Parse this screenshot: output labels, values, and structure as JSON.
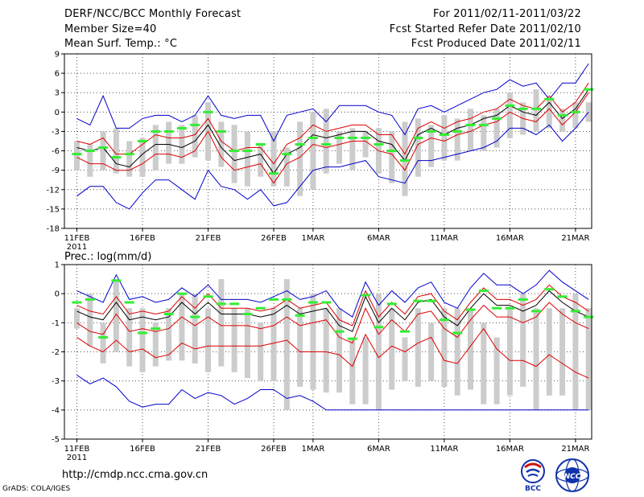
{
  "header": {
    "title": "DERF/NCC/BCC Monthly Forecast",
    "member_size": "Member Size=40",
    "variable_label": "Mean Surf. Temp.: °C",
    "forecast_period": "For 2011/02/11-2011/03/22",
    "fcst_started": "Fcst Started Refer Date 2011/02/10",
    "fcst_produced": "Fcst Produced Date 2011/02/11"
  },
  "footer": {
    "url": "http://cmdp.ncc.cma.gov.cn",
    "grads_credit": "GrADS: COLA/IGES",
    "logo_bcc": "BCC",
    "logo_ncc": "NCC"
  },
  "colors": {
    "box": "#cccccc",
    "mean": "#000000",
    "inner": "#dd0000",
    "outer": "#0000cc",
    "obs": "#33ee33",
    "grid": "#555555"
  },
  "chart_data": [
    {
      "id": "temp",
      "type": "line",
      "title": "Mean Surf. Temp.: °C",
      "ylim": [
        -18,
        9
      ],
      "yticks": [
        9,
        6,
        3,
        0,
        -3,
        -6,
        -9,
        -12,
        -15,
        -18
      ],
      "xlim": [
        0,
        40
      ],
      "xtick_positions": [
        0,
        5,
        10,
        15,
        18,
        23,
        28,
        33,
        38
      ],
      "xtick_labels": [
        "11FEB",
        "16FEB",
        "21FEB",
        "26FEB",
        "1MAR",
        "6MAR",
        "11MAR",
        "16MAR",
        "21MAR"
      ],
      "xtick_sublabel": "2011",
      "days": [
        0,
        1,
        2,
        3,
        4,
        5,
        6,
        7,
        8,
        9,
        10,
        11,
        12,
        13,
        14,
        15,
        16,
        17,
        18,
        19,
        20,
        21,
        22,
        23,
        24,
        25,
        26,
        27,
        28,
        29,
        30,
        31,
        32,
        33,
        34,
        35,
        36,
        37,
        38,
        39
      ],
      "box_top": [
        -4.5,
        -5,
        -3,
        -2.5,
        -4.5,
        -4,
        -2,
        -1.5,
        -2,
        -0.5,
        1.5,
        -1.5,
        -2,
        -3,
        -5,
        -3,
        -5.5,
        -1.5,
        0,
        0.5,
        -3,
        -2.5,
        -3,
        -2.5,
        -3,
        -1.5,
        -1,
        -2,
        -0.5,
        -1,
        0.5,
        -0.5,
        0.5,
        3,
        1.5,
        3.5,
        2,
        0.5,
        1.5,
        1.5
      ],
      "box_bottom": [
        -9,
        -10,
        -9,
        -9.5,
        -10,
        -10,
        -9,
        -8,
        -8,
        -7,
        -7.5,
        -8.5,
        -11,
        -11.5,
        -10,
        -11.5,
        -11.5,
        -13,
        -12,
        -9.5,
        -8,
        -9,
        -7,
        -9.5,
        -11,
        -13,
        -10,
        -8.5,
        -7.5,
        -7.5,
        -6,
        -6,
        -5.5,
        -4,
        -3.5,
        -3,
        -2.5,
        -3,
        -2.5,
        -1.5
      ],
      "obs": [
        -6.5,
        -6,
        -5.5,
        -7,
        -6.5,
        -4.5,
        -3,
        -3,
        -2.5,
        -2,
        0,
        -3,
        -6,
        -6,
        -5,
        -9.5,
        -6.5,
        -5,
        -4,
        -5,
        -4,
        -4,
        -4,
        -5,
        -6,
        -7.5,
        -4,
        -3,
        -3.5,
        -3,
        -2,
        -2,
        -1,
        1,
        0.5,
        0.5,
        2,
        -0.5,
        0,
        3.5
      ],
      "series": [
        {
          "name": "upper-outer",
          "role": "outer",
          "values": [
            -1,
            -2,
            2.5,
            -2.5,
            -2.5,
            -1,
            -0.5,
            -0.5,
            -1.5,
            -0.5,
            2.5,
            -0.5,
            -1,
            -0.5,
            -0.5,
            -4.5,
            -0.5,
            0,
            0.5,
            -1.5,
            1,
            1,
            1,
            0,
            -0.5,
            -3.5,
            0.5,
            1,
            0,
            1,
            2,
            3,
            3.5,
            5,
            4,
            4.5,
            2,
            4.5,
            4.5,
            7.5
          ]
        },
        {
          "name": "upper-inner",
          "role": "inner",
          "values": [
            -4.5,
            -5,
            -4,
            -6.5,
            -6.5,
            -5,
            -3.5,
            -4,
            -4,
            -3.5,
            -1,
            -4.5,
            -6,
            -5.5,
            -5.5,
            -8,
            -5,
            -4,
            -2,
            -3,
            -2.5,
            -2,
            -2,
            -3.5,
            -3.5,
            -6.5,
            -2.5,
            -1.5,
            -2.5,
            -1.5,
            -1,
            0,
            0.5,
            2,
            1,
            0.5,
            2.5,
            0,
            1.5,
            4.5
          ]
        },
        {
          "name": "mean",
          "role": "mean",
          "values": [
            -5.5,
            -6,
            -5.5,
            -8,
            -8.5,
            -6.5,
            -5,
            -5,
            -5.5,
            -4.5,
            -2,
            -5.5,
            -7.5,
            -7,
            -6.5,
            -9.5,
            -6.5,
            -5.5,
            -3.5,
            -4,
            -3.5,
            -3,
            -3,
            -4.5,
            -5,
            -7.5,
            -3.5,
            -2.5,
            -3.5,
            -2.5,
            -2,
            -1,
            -0.5,
            1,
            0,
            -0.5,
            1.5,
            -1,
            0.5,
            3.5
          ]
        },
        {
          "name": "lower-inner",
          "role": "inner",
          "values": [
            -7,
            -8,
            -8,
            -9,
            -9,
            -8,
            -6.5,
            -6.5,
            -7,
            -6,
            -3,
            -7,
            -9,
            -8.5,
            -8,
            -11,
            -8,
            -7,
            -5,
            -5.5,
            -5,
            -4.5,
            -4.5,
            -6,
            -6.5,
            -9,
            -5,
            -4,
            -4.5,
            -3.5,
            -3,
            -2,
            -1.5,
            0,
            -1,
            -1.5,
            0.5,
            -2,
            0,
            3
          ]
        },
        {
          "name": "lower-outer",
          "role": "outer",
          "values": [
            -13,
            -11.5,
            -11.5,
            -14,
            -15,
            -12.5,
            -10.5,
            -10.5,
            -12,
            -13.5,
            -9,
            -11.5,
            -12,
            -13.5,
            -12,
            -14.5,
            -14,
            -11.5,
            -9,
            -8.5,
            -8.5,
            -8,
            -7.5,
            -10,
            -10.5,
            -11,
            -7.5,
            -7.5,
            -7,
            -6.5,
            -6,
            -5.5,
            -4.5,
            -2.5,
            -2.5,
            -3.5,
            -2,
            -4.5,
            -2.5,
            0
          ]
        }
      ]
    },
    {
      "id": "prec",
      "type": "line",
      "title": "Prec.: log(mm/d)",
      "ylim": [
        -5,
        1
      ],
      "yticks": [
        1,
        0,
        -1,
        -2,
        -3,
        -4,
        -5
      ],
      "xlim": [
        0,
        40
      ],
      "xtick_positions": [
        0,
        5,
        10,
        15,
        18,
        23,
        28,
        33,
        38
      ],
      "xtick_labels": [
        "11FEB",
        "16FEB",
        "21FEB",
        "26FEB",
        "1MAR",
        "6MAR",
        "11MAR",
        "16MAR",
        "21MAR"
      ],
      "xtick_sublabel": "2011",
      "days": [
        0,
        1,
        2,
        3,
        4,
        5,
        6,
        7,
        8,
        9,
        10,
        11,
        12,
        13,
        14,
        15,
        16,
        17,
        18,
        19,
        20,
        21,
        22,
        23,
        24,
        25,
        26,
        27,
        28,
        29,
        30,
        31,
        32,
        33,
        34,
        35,
        36,
        37,
        38,
        39
      ],
      "box_top": [
        -0.5,
        0,
        -1,
        0.5,
        -0.5,
        -0.5,
        -1,
        -0.5,
        0,
        0,
        -0.5,
        0.5,
        -0.5,
        -0.5,
        -1,
        -0.5,
        0.5,
        -0.5,
        0,
        -0.5,
        -0.5,
        -1.5,
        -1.5,
        0,
        -0.5,
        -1.5,
        -0.5,
        -1,
        -0.5,
        -0.5,
        -0.5,
        -1,
        -1.5,
        -0.5,
        0,
        -0.5,
        -0.5,
        -0.5,
        0,
        -0.5
      ],
      "box_bottom": [
        -1.2,
        -1.8,
        -2.4,
        -2,
        -2.5,
        -2.7,
        -2.5,
        -2.3,
        -2.3,
        -2.4,
        -2.7,
        -2.5,
        -2.7,
        -2.9,
        -3,
        -3,
        -4,
        -3.2,
        -3.3,
        -3.4,
        -3.4,
        -3.8,
        -3.8,
        -4,
        -3.3,
        -3,
        -3.2,
        -3,
        -3.2,
        -3.5,
        -3.3,
        -3.8,
        -3.8,
        -3.5,
        -3.2,
        -4,
        -3.5,
        -3.5,
        -4,
        -4
      ],
      "obs": [
        -0.3,
        -0.2,
        -1.5,
        0.45,
        -0.3,
        -1.35,
        -1.2,
        -0.7,
        0,
        -0.8,
        -0.1,
        -0.35,
        -0.35,
        -0.7,
        -0.5,
        -0.2,
        -0.2,
        -0.75,
        -0.3,
        -0.3,
        -1.3,
        -1.55,
        -0.05,
        -1.15,
        -0.35,
        -1.3,
        -0.25,
        -0.25,
        -0.9,
        -1.35,
        -0.55,
        0.1,
        -0.5,
        -0.5,
        -0.2,
        -0.6,
        0.15,
        -0.1,
        -0.6,
        -0.8
      ],
      "series": [
        {
          "name": "upper-outer",
          "role": "outer",
          "values": [
            0.1,
            -0.1,
            -0.3,
            0.65,
            -0.2,
            -0.1,
            -0.3,
            -0.2,
            0.2,
            -0.1,
            0.3,
            -0.2,
            -0.2,
            -0.2,
            -0.3,
            -0.1,
            0.1,
            -0.2,
            -0.1,
            0.1,
            -0.5,
            -0.8,
            0.4,
            -0.4,
            0.1,
            -0.3,
            0.2,
            0.4,
            -0.3,
            -0.5,
            0.2,
            0.7,
            0.3,
            0.3,
            0,
            0.3,
            0.8,
            0.4,
            0.1,
            -0.2
          ]
        },
        {
          "name": "upper-inner",
          "role": "inner",
          "values": [
            -0.4,
            -0.6,
            -0.7,
            -0.1,
            -0.7,
            -0.6,
            -0.7,
            -0.6,
            -0.1,
            -0.5,
            0,
            -0.5,
            -0.5,
            -0.5,
            -0.6,
            -0.5,
            -0.2,
            -0.5,
            -0.4,
            -0.3,
            -0.9,
            -1.1,
            0.1,
            -0.8,
            -0.3,
            -0.7,
            -0.1,
            0,
            -0.6,
            -0.9,
            -0.3,
            0.2,
            -0.2,
            -0.2,
            -0.4,
            -0.2,
            0.3,
            -0.1,
            -0.3,
            -0.6
          ]
        },
        {
          "name": "mean",
          "role": "mean",
          "values": [
            -0.6,
            -0.8,
            -0.9,
            -0.3,
            -0.9,
            -0.8,
            -0.9,
            -0.8,
            -0.3,
            -0.7,
            -0.3,
            -0.7,
            -0.7,
            -0.7,
            -0.8,
            -0.7,
            -0.4,
            -0.7,
            -0.6,
            -0.5,
            -1.1,
            -1.3,
            -0.1,
            -1,
            -0.5,
            -0.9,
            -0.3,
            -0.2,
            -0.8,
            -1.1,
            -0.5,
            0,
            -0.4,
            -0.4,
            -0.6,
            -0.4,
            0.1,
            -0.3,
            -0.6,
            -0.8
          ]
        },
        {
          "name": "lower-inner",
          "role": "inner",
          "values": [
            -1,
            -1.3,
            -1.4,
            -0.7,
            -1.3,
            -1.2,
            -1.3,
            -1.2,
            -0.8,
            -1.1,
            -0.8,
            -1.1,
            -1.1,
            -1.1,
            -1.2,
            -1.1,
            -0.8,
            -1.1,
            -1,
            -0.9,
            -1.5,
            -1.7,
            -0.5,
            -1.4,
            -0.9,
            -1.3,
            -0.7,
            -0.6,
            -1.2,
            -1.5,
            -0.9,
            -0.4,
            -0.8,
            -0.8,
            -1,
            -0.8,
            -0.3,
            -0.7,
            -1,
            -1.2
          ]
        },
        {
          "name": "lower-red",
          "role": "inner",
          "values": [
            -1.5,
            -1.8,
            -2,
            -1.6,
            -2,
            -1.9,
            -2.2,
            -2.1,
            -1.7,
            -1.9,
            -1.8,
            -1.8,
            -1.8,
            -1.8,
            -1.8,
            -1.7,
            -1.6,
            -2,
            -2,
            -2,
            -2.1,
            -2.5,
            -1.4,
            -2.2,
            -1.8,
            -2,
            -1.7,
            -1.5,
            -2.3,
            -2.4,
            -1.8,
            -1.2,
            -1.9,
            -2.3,
            -2.3,
            -2.5,
            -2.1,
            -2.4,
            -2.7,
            -2.9
          ]
        },
        {
          "name": "lower-outer",
          "role": "outer",
          "values": [
            -2.8,
            -3.1,
            -2.9,
            -3.2,
            -3.7,
            -3.9,
            -3.8,
            -3.8,
            -3.3,
            -3.6,
            -3.4,
            -3.5,
            -3.8,
            -3.6,
            -3.3,
            -3.3,
            -3.6,
            -3.5,
            -3.7,
            -4,
            -4,
            -4,
            -4,
            -4,
            -4,
            -4,
            -4,
            -4,
            -4,
            -4,
            -4,
            -4,
            -4,
            -4,
            -4,
            -4,
            -4,
            -4,
            -4,
            -4
          ]
        }
      ]
    }
  ]
}
